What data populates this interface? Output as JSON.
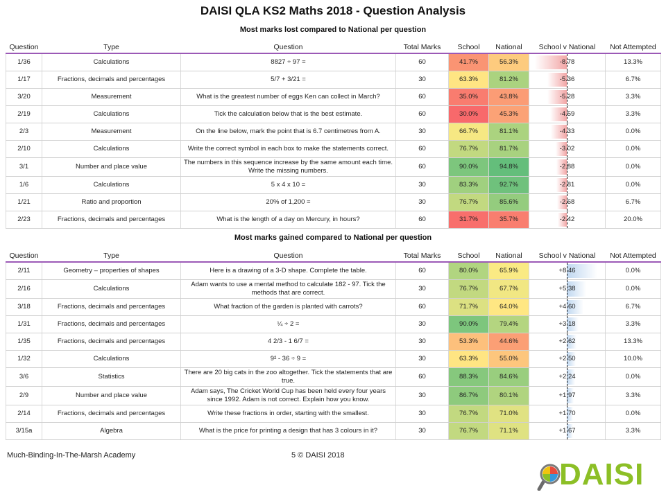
{
  "title": "DAISI QLA KS2 Maths 2018 - Question Analysis",
  "columns": [
    "Question",
    "Type",
    "Question",
    "Total Marks",
    "School",
    "National",
    "School v National",
    "Not Attempted"
  ],
  "section_lost": {
    "heading": "Most marks lost compared to National per question",
    "rows": [
      {
        "q": "1/36",
        "type": "Calculations",
        "question": "8827 ÷ 97 =",
        "total": "60",
        "school": "41.7%",
        "national": "56.3%",
        "svn": "-8.78",
        "svn_value": -8.78,
        "not_attempted": "13.3%"
      },
      {
        "q": "1/17",
        "type": "Fractions, decimals and percentages",
        "question": "5/7 + 3/21 =",
        "total": "30",
        "school": "63.3%",
        "national": "81.2%",
        "svn": "-5.36",
        "svn_value": -5.36,
        "not_attempted": "6.7%"
      },
      {
        "q": "3/20",
        "type": "Measurement",
        "question": "What is the greatest number of eggs Ken can collect in March?",
        "total": "60",
        "school": "35.0%",
        "national": "43.8%",
        "svn": "-5.28",
        "svn_value": -5.28,
        "not_attempted": "3.3%"
      },
      {
        "q": "2/19",
        "type": "Calculations",
        "question": "Tick the calculation below that is the best estimate.",
        "total": "60",
        "school": "30.0%",
        "national": "45.3%",
        "svn": "-4.59",
        "svn_value": -4.59,
        "not_attempted": "3.3%"
      },
      {
        "q": "2/3",
        "type": "Measurement",
        "question": "On the line below, mark the point that is 6.7 centimetres from A.",
        "total": "30",
        "school": "66.7%",
        "national": "81.1%",
        "svn": "-4.33",
        "svn_value": -4.33,
        "not_attempted": "0.0%"
      },
      {
        "q": "2/10",
        "type": "Calculations",
        "question": "Write the correct symbol in each box to make the statements correct.",
        "total": "60",
        "school": "76.7%",
        "national": "81.7%",
        "svn": "-3.02",
        "svn_value": -3.02,
        "not_attempted": "0.0%"
      },
      {
        "q": "3/1",
        "type": "Number and place value",
        "question": "The numbers in this sequence increase by the same amount each time. Write the missing numbers.",
        "total": "60",
        "school": "90.0%",
        "national": "94.8%",
        "svn": "-2.88",
        "svn_value": -2.88,
        "not_attempted": "0.0%"
      },
      {
        "q": "1/6",
        "type": "Calculations",
        "question": "5 x 4 x 10 =",
        "total": "30",
        "school": "83.3%",
        "national": "92.7%",
        "svn": "-2.81",
        "svn_value": -2.81,
        "not_attempted": "0.0%"
      },
      {
        "q": "1/21",
        "type": "Ratio and proportion",
        "question": "20% of 1,200 =",
        "total": "30",
        "school": "76.7%",
        "national": "85.6%",
        "svn": "-2.68",
        "svn_value": -2.68,
        "not_attempted": "6.7%"
      },
      {
        "q": "2/23",
        "type": "Fractions, decimals and percentages",
        "question": "What is the length of a day on Mercury, in hours?",
        "total": "60",
        "school": "31.7%",
        "national": "35.7%",
        "svn": "-2.42",
        "svn_value": -2.42,
        "not_attempted": "20.0%"
      }
    ]
  },
  "section_gained": {
    "heading": "Most marks gained compared to National per question",
    "rows": [
      {
        "q": "2/11",
        "type": "Geometry – properties of shapes",
        "question": "Here is a drawing of a 3-D shape. Complete the table.",
        "total": "60",
        "school": "80.0%",
        "national": "65.9%",
        "svn": "+8.46",
        "svn_value": 8.46,
        "not_attempted": "0.0%"
      },
      {
        "q": "2/16",
        "type": "Calculations",
        "question": "Adam wants to use a mental method to calculate 182 - 97. Tick the methods that are correct.",
        "total": "30",
        "school": "76.7%",
        "national": "67.7%",
        "svn": "+5.38",
        "svn_value": 5.38,
        "not_attempted": "0.0%"
      },
      {
        "q": "3/18",
        "type": "Fractions, decimals and percentages",
        "question": "What fraction of the garden is planted with carrots?",
        "total": "60",
        "school": "71.7%",
        "national": "64.0%",
        "svn": "+4.60",
        "svn_value": 4.6,
        "not_attempted": "6.7%"
      },
      {
        "q": "1/31",
        "type": "Fractions, decimals and percentages",
        "question": "¼ ÷ 2 =",
        "total": "30",
        "school": "90.0%",
        "national": "79.4%",
        "svn": "+3.18",
        "svn_value": 3.18,
        "not_attempted": "3.3%"
      },
      {
        "q": "1/35",
        "type": "Fractions, decimals and percentages",
        "question": "4 2/3 - 1 6/7 =",
        "total": "30",
        "school": "53.3%",
        "national": "44.6%",
        "svn": "+2.62",
        "svn_value": 2.62,
        "not_attempted": "13.3%"
      },
      {
        "q": "1/32",
        "type": "Calculations",
        "question": "9² - 36 ÷ 9 =",
        "total": "30",
        "school": "63.3%",
        "national": "55.0%",
        "svn": "+2.50",
        "svn_value": 2.5,
        "not_attempted": "10.0%"
      },
      {
        "q": "3/6",
        "type": "Statistics",
        "question": "There are 20 big cats in the zoo altogether. Tick the statements that are true.",
        "total": "60",
        "school": "88.3%",
        "national": "84.6%",
        "svn": "+2.24",
        "svn_value": 2.24,
        "not_attempted": "0.0%"
      },
      {
        "q": "2/9",
        "type": "Number and place value",
        "question": "Adam says, The Cricket World Cup has been held every four years since 1992. Adam is not correct. Explain how you know.",
        "total": "30",
        "school": "86.7%",
        "national": "80.1%",
        "svn": "+1.97",
        "svn_value": 1.97,
        "not_attempted": "3.3%"
      },
      {
        "q": "2/14",
        "type": "Fractions, decimals and percentages",
        "question": "Write these fractions in order, starting with the smallest.",
        "total": "30",
        "school": "76.7%",
        "national": "71.0%",
        "svn": "+1.70",
        "svn_value": 1.7,
        "not_attempted": "0.0%"
      },
      {
        "q": "3/15a",
        "type": "Algebra",
        "question": "What is the price for printing a design that has 3 colours in it?",
        "total": "30",
        "school": "76.7%",
        "national": "71.1%",
        "svn": "+1.67",
        "svn_value": 1.67,
        "not_attempted": "3.3%"
      }
    ]
  },
  "colors": {
    "header_rule": "#9b59b6",
    "low": "#f8696b",
    "mid": "#ffeb84",
    "high": "#63be7b",
    "neg_bar": "#f2a6a6",
    "pos_bar": "#bfd7f0",
    "logo_text": "#8cbf26"
  },
  "footer": {
    "academy": "Much-Binding-In-The-Marsh Academy",
    "page": "5 © DAISI 2018"
  },
  "logo": {
    "text": "DAISI",
    "icon": "magnifier-pie-icon"
  }
}
